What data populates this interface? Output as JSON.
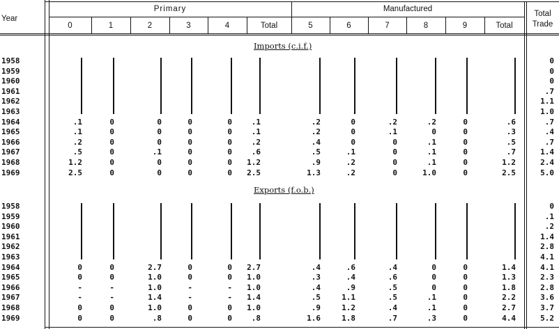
{
  "header": {
    "year_label": "Year",
    "primary_label": "Primary",
    "manufactured_label": "Manufactured",
    "total_trade_label_1": "Total",
    "total_trade_label_2": "Trade",
    "columns": [
      "0",
      "1",
      "2",
      "3",
      "4",
      "Total",
      "5",
      "6",
      "7",
      "8",
      "9",
      "Total"
    ]
  },
  "imports": {
    "title": "Imports (c.i.f.)",
    "rows": [
      {
        "year": "1958",
        "cells": [
          "",
          "",
          "",
          "",
          "",
          "",
          "",
          "",
          "",
          "",
          "",
          ""
        ],
        "total_trade": "0"
      },
      {
        "year": "1959",
        "cells": [
          "",
          "",
          "",
          "",
          "",
          "",
          "",
          "",
          "",
          "",
          "",
          ""
        ],
        "total_trade": "0"
      },
      {
        "year": "1960",
        "cells": [
          "",
          "",
          "",
          "",
          "",
          "",
          "",
          "",
          "",
          "",
          "",
          ""
        ],
        "total_trade": "0"
      },
      {
        "year": "1961",
        "cells": [
          "",
          "",
          "",
          "",
          "",
          "",
          "",
          "",
          "",
          "",
          "",
          ""
        ],
        "total_trade": ".7"
      },
      {
        "year": "1962",
        "cells": [
          "",
          "",
          "",
          "",
          "",
          "",
          "",
          "",
          "",
          "",
          "",
          ""
        ],
        "total_trade": "1.1"
      },
      {
        "year": "1963",
        "cells": [
          "",
          "",
          "",
          "",
          "",
          "",
          "",
          "",
          "",
          "",
          "",
          ""
        ],
        "total_trade": "1.0"
      },
      {
        "year": "1964",
        "cells": [
          ".1",
          "0",
          "0",
          "0",
          "0",
          ".1",
          ".2",
          "0",
          ".2",
          ".2",
          "0",
          ".6"
        ],
        "total_trade": ".7"
      },
      {
        "year": "1965",
        "cells": [
          ".1",
          "0",
          "0",
          "0",
          "0",
          ".1",
          ".2",
          "0",
          ".1",
          "0",
          "0",
          ".3"
        ],
        "total_trade": ".4"
      },
      {
        "year": "1966",
        "cells": [
          ".2",
          "0",
          "0",
          "0",
          "0",
          ".2",
          ".4",
          "0",
          "0",
          ".1",
          "0",
          ".5"
        ],
        "total_trade": ".7"
      },
      {
        "year": "1967",
        "cells": [
          ".5",
          "0",
          ".1",
          "0",
          "0",
          ".6",
          ".5",
          ".1",
          "0",
          ".1",
          "0",
          ".7"
        ],
        "total_trade": "1.4"
      },
      {
        "year": "1968",
        "cells": [
          "1.2",
          "0",
          "0",
          "0",
          "0",
          "1.2",
          ".9",
          ".2",
          "0",
          ".1",
          "0",
          "1.2"
        ],
        "total_trade": "2.4"
      },
      {
        "year": "1969",
        "cells": [
          "2.5",
          "0",
          "0",
          "0",
          "0",
          "2.5",
          "1.3",
          ".2",
          "0",
          "1.0",
          "0",
          "2.5"
        ],
        "total_trade": "5.0"
      }
    ]
  },
  "exports": {
    "title": "Exports (f.o.b.)",
    "rows": [
      {
        "year": "1958",
        "cells": [
          "",
          "",
          "",
          "",
          "",
          "",
          "",
          "",
          "",
          "",
          "",
          ""
        ],
        "total_trade": "0"
      },
      {
        "year": "1959",
        "cells": [
          "",
          "",
          "",
          "",
          "",
          "",
          "",
          "",
          "",
          "",
          "",
          ""
        ],
        "total_trade": ".1"
      },
      {
        "year": "1960",
        "cells": [
          "",
          "",
          "",
          "",
          "",
          "",
          "",
          "",
          "",
          "",
          "",
          ""
        ],
        "total_trade": ".2"
      },
      {
        "year": "1961",
        "cells": [
          "",
          "",
          "",
          "",
          "",
          "",
          "",
          "",
          "",
          "",
          "",
          ""
        ],
        "total_trade": "1.4"
      },
      {
        "year": "1962",
        "cells": [
          "",
          "",
          "",
          "",
          "",
          "",
          "",
          "",
          "",
          "",
          "",
          ""
        ],
        "total_trade": "2.8"
      },
      {
        "year": "1963",
        "cells": [
          "",
          "",
          "",
          "",
          "",
          "",
          "",
          "",
          "",
          "",
          "",
          ""
        ],
        "total_trade": "4.1"
      },
      {
        "year": "1964",
        "cells": [
          "0",
          "0",
          "2.7",
          "0",
          "0",
          "2.7",
          ".4",
          ".6",
          ".4",
          "0",
          "0",
          "1.4"
        ],
        "total_trade": "4.1"
      },
      {
        "year": "1965",
        "cells": [
          "0",
          "0",
          "1.0",
          "0",
          "0",
          "1.0",
          ".3",
          ".4",
          ".6",
          "0",
          "0",
          "1.3"
        ],
        "total_trade": "2.3"
      },
      {
        "year": "1966",
        "cells": [
          "-",
          "-",
          "1.0",
          "-",
          "-",
          "1.0",
          ".4",
          ".9",
          ".5",
          "0",
          "0",
          "1.8"
        ],
        "total_trade": "2.8"
      },
      {
        "year": "1967",
        "cells": [
          "-",
          "-",
          "1.4",
          "-",
          "-",
          "1.4",
          ".5",
          "1.1",
          ".5",
          ".1",
          "0",
          "2.2"
        ],
        "total_trade": "3.6"
      },
      {
        "year": "1968",
        "cells": [
          "0",
          "0",
          "1.0",
          "0",
          "0",
          "1.0",
          ".9",
          "1.2",
          ".4",
          ".1",
          "0",
          "2.7"
        ],
        "total_trade": "3.7"
      },
      {
        "year": "1969",
        "cells": [
          "0",
          "0",
          ".8",
          "0",
          "0",
          ".8",
          "1.6",
          "1.8",
          ".7",
          ".3",
          "0",
          "4.4"
        ],
        "total_trade": "5.2"
      }
    ]
  }
}
